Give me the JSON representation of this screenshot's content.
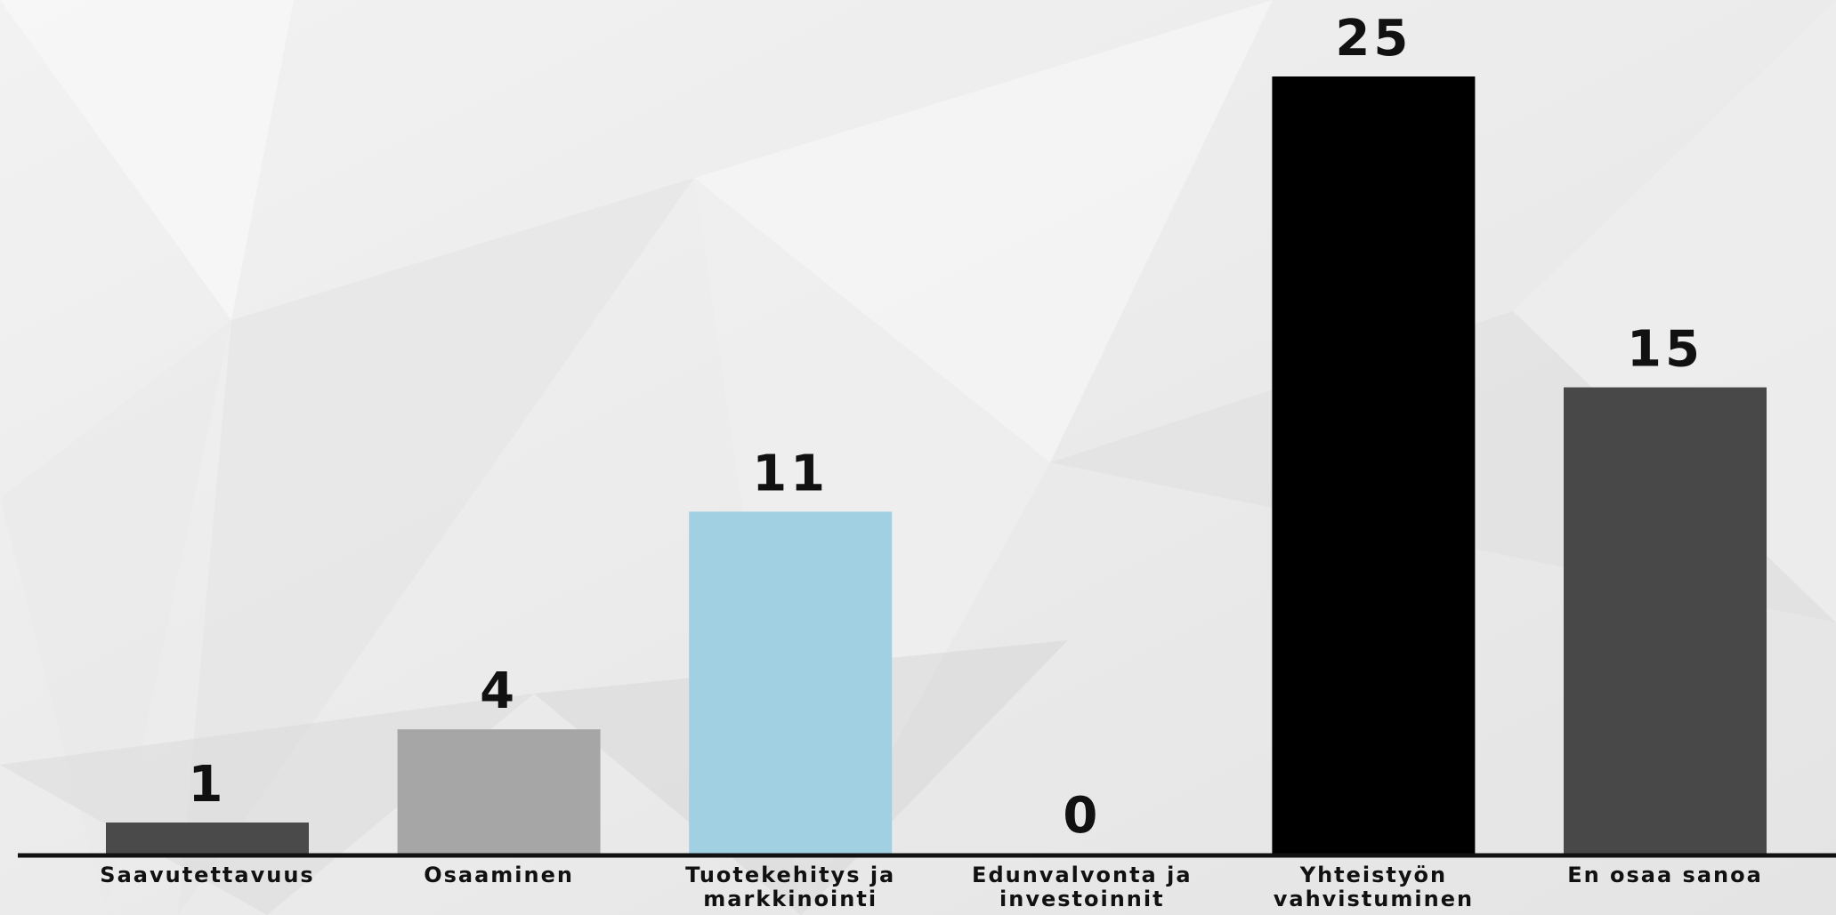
{
  "chart_data": {
    "type": "bar",
    "categories": [
      [
        "Saavutettavuus"
      ],
      [
        "Osaaminen"
      ],
      [
        "Tuotekehitys ja",
        "markkinointi"
      ],
      [
        "Edunvalvonta ja",
        "investoinnit"
      ],
      [
        "Yhteistyön",
        "vahvistuminen"
      ],
      [
        "En osaa sanoa"
      ]
    ],
    "values": [
      1,
      4,
      11,
      0,
      25,
      15
    ],
    "value_labels": [
      "1",
      "4",
      "11",
      "0",
      "25",
      "15"
    ],
    "bar_colors": [
      "#4a4a4a",
      "#a6a6a6",
      "#a2d0e3",
      "#4a4a4a",
      "#000000",
      "#484848"
    ],
    "ylim": [
      0,
      25
    ],
    "grid": false,
    "legend": "none",
    "title": "",
    "xlabel": "",
    "ylabel": ""
  }
}
